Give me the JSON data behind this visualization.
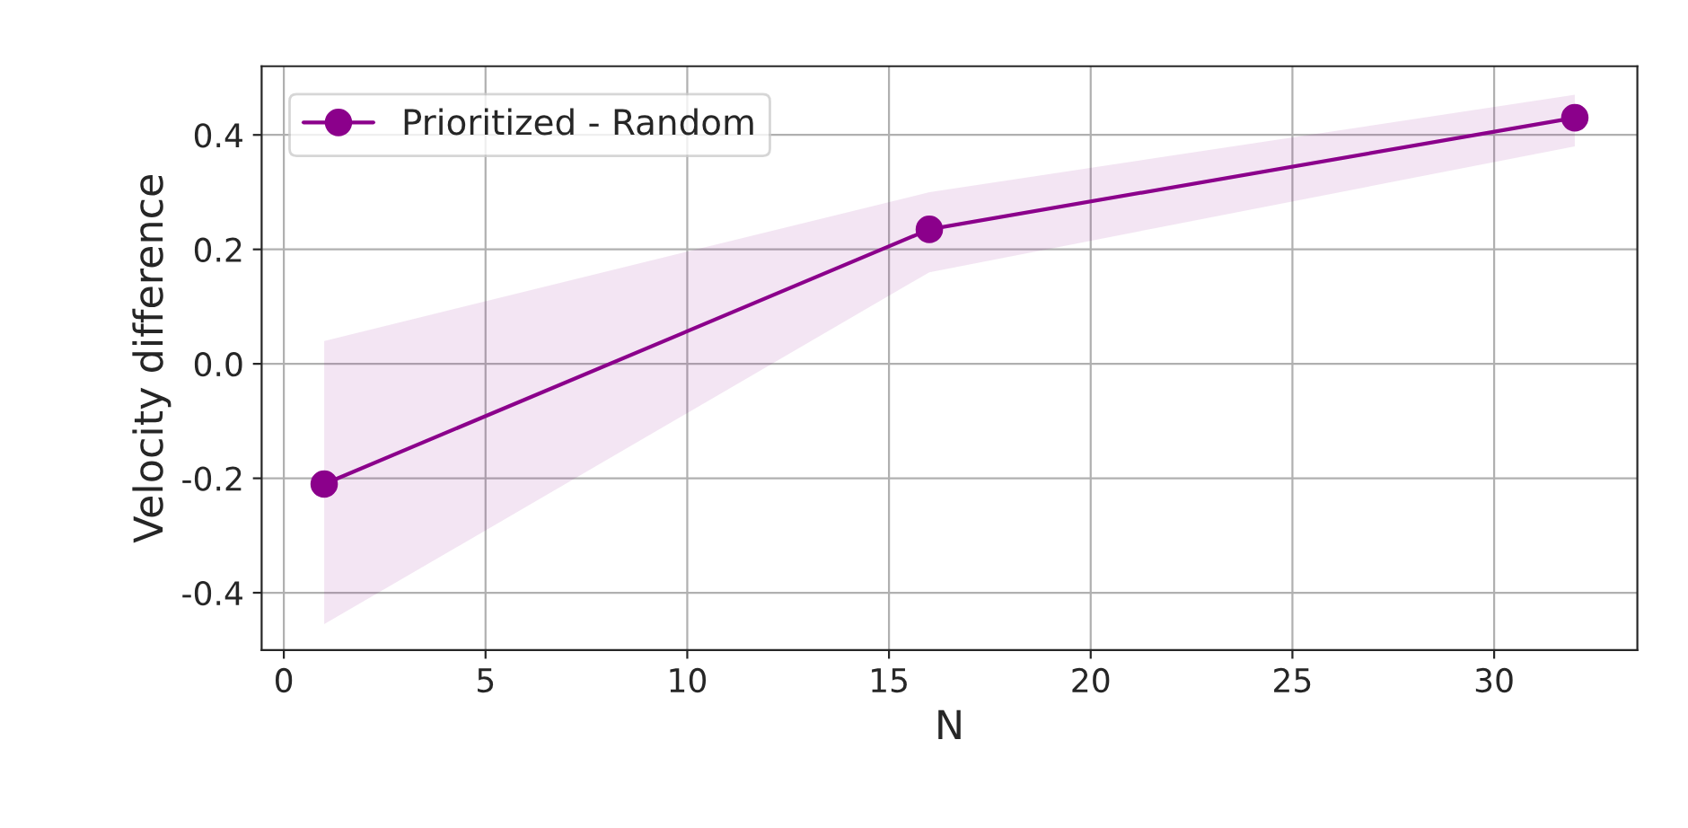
{
  "chart_data": {
    "type": "line",
    "xlabel": "N",
    "ylabel": "Velocity difference",
    "x": [
      1,
      16,
      32
    ],
    "series": [
      {
        "name": "Prioritized - Random",
        "color": "#8b008b",
        "values": [
          -0.21,
          0.235,
          0.43
        ],
        "lower": [
          -0.455,
          0.16,
          0.38
        ],
        "upper": [
          0.04,
          0.3,
          0.47
        ]
      }
    ],
    "xlim": [
      -0.55,
      33.55
    ],
    "ylim": [
      -0.5,
      0.52
    ],
    "xticks": [
      0,
      5,
      10,
      15,
      20,
      25,
      30
    ],
    "yticks": [
      -0.4,
      -0.2,
      {
        "value": 0,
        "label": "0.0"
      },
      0.2,
      0.4
    ],
    "grid": true,
    "legend": "top left",
    "marker": "circle",
    "line_style": "solid"
  }
}
